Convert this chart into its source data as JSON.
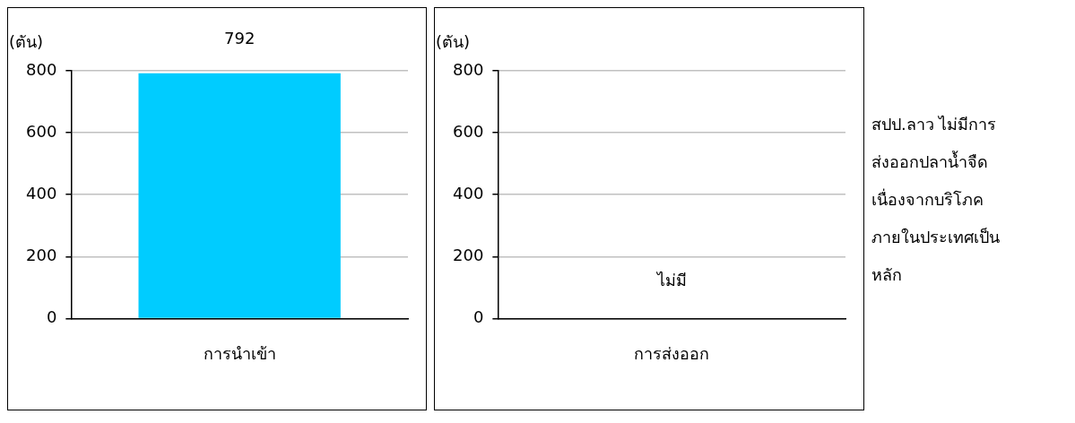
{
  "chart_data": [
    {
      "type": "bar",
      "ylabel": "(ตัน)",
      "categories": [
        "การนำเข้า"
      ],
      "values": [
        792
      ],
      "color": "#00ccff",
      "ylim": [
        0,
        800
      ],
      "yticks": [
        0,
        200,
        400,
        600,
        800
      ],
      "grid": "y",
      "data_labels": true
    },
    {
      "type": "bar",
      "ylabel": "(ตัน)",
      "categories": [
        "การส่งออก"
      ],
      "values": [
        null
      ],
      "color": "#00ccff",
      "ylim": [
        0,
        800
      ],
      "yticks": [
        0,
        200,
        400,
        600,
        800
      ],
      "grid": "y",
      "annotations": [
        "ไม่มี"
      ]
    },
    {
      "type": "other",
      "annotations": [
        "สปป.ลาว ไม่มีการส่งออกปลาน้ำจืด เนื่องจากบริโภคภายในประเทศเป็นหลัก"
      ]
    }
  ]
}
